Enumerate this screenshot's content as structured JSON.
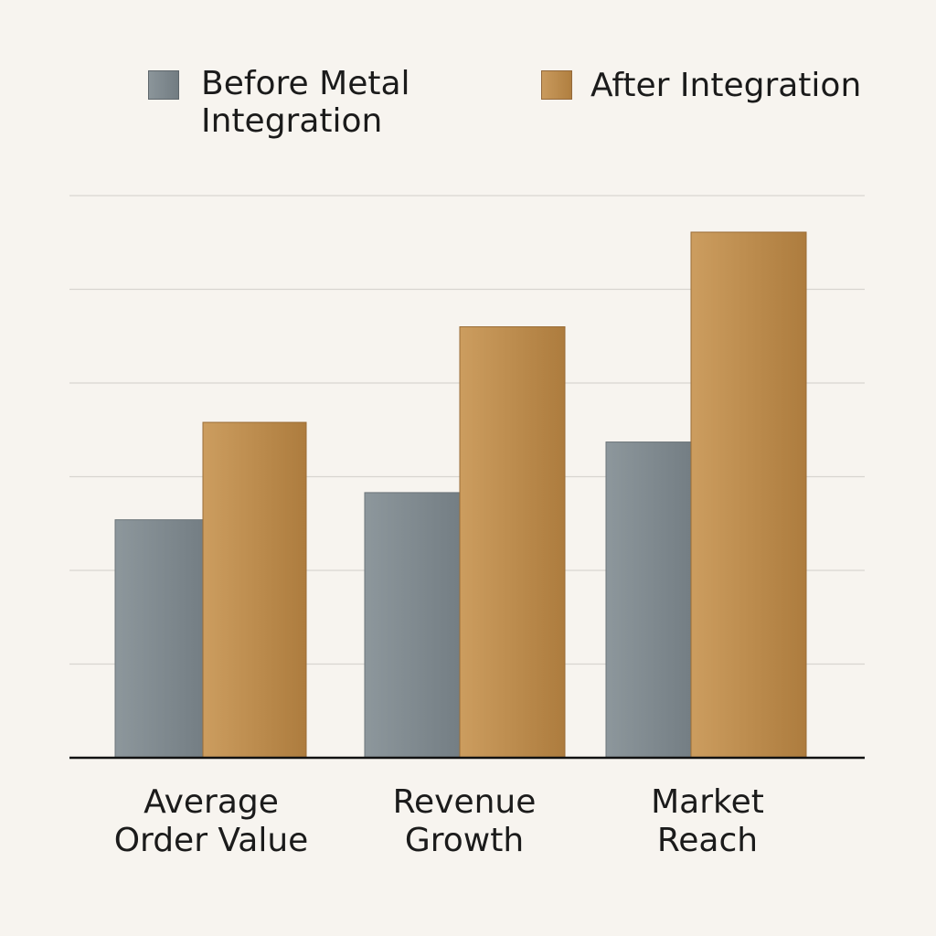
{
  "legend": {
    "before_label": "Before Metal\nIntegration",
    "after_label": "After Integration"
  },
  "colors": {
    "background": "#f7f4ef",
    "before_series": "#828c92",
    "after_series": "#c08d4e",
    "gridline": "#d8d5d0",
    "axis": "#111111"
  },
  "chart_data": {
    "type": "bar",
    "categories": [
      "Average\nOrder Value",
      "Revenue\nGrowth",
      "Market\nReach"
    ],
    "series": [
      {
        "name": "Before Metal\nIntegration",
        "values": [
          2.54,
          2.83,
          3.37
        ]
      },
      {
        "name": "After Integration",
        "values": [
          3.58,
          4.6,
          5.61
        ]
      }
    ],
    "ylim": [
      0,
      6
    ],
    "y_ticks_labeled": false,
    "grid": true,
    "legend_position": "top",
    "xlabel": "",
    "ylabel": ""
  }
}
